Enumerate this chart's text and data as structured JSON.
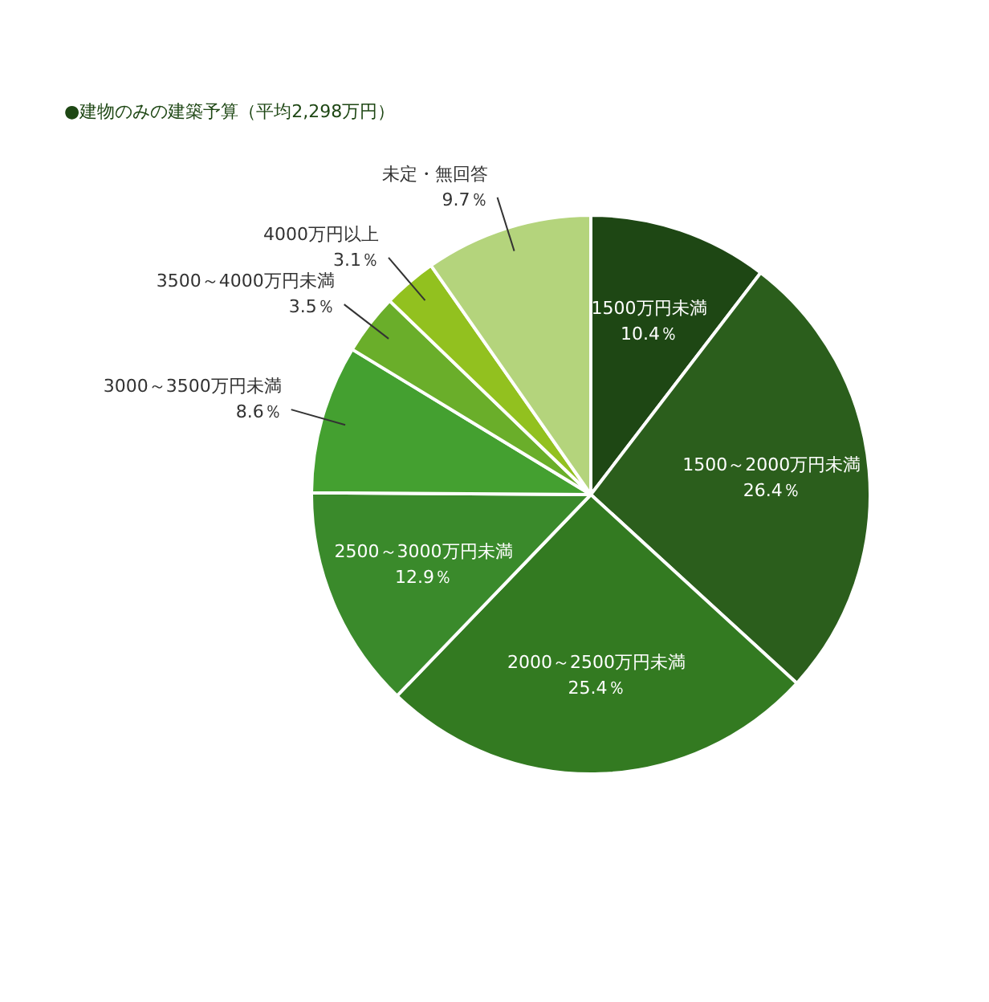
{
  "chart_data": {
    "type": "pie",
    "title": "●建物のみの建築予算（平均2,298万円）",
    "categories": [
      "1500万円未満",
      "1500～2000万円未満",
      "2000～2500万円未満",
      "2500～3000万円未満",
      "3000～3500万円未満",
      "3500～4000万円未満",
      "4000万円以上",
      "未定・無回答"
    ],
    "values": [
      10.4,
      26.4,
      25.4,
      12.9,
      8.6,
      3.5,
      3.1,
      9.7
    ],
    "colors": [
      "#1e4714",
      "#2b5e1c",
      "#337a21",
      "#3a8a2b",
      "#44a030",
      "#6aae2a",
      "#92c11f",
      "#b4d47c"
    ],
    "value_labels": [
      "10.4％",
      "26.4％",
      "25.4％",
      "12.9％",
      "8.6％",
      "3.5％",
      "3.1％",
      "9.7％"
    ]
  }
}
